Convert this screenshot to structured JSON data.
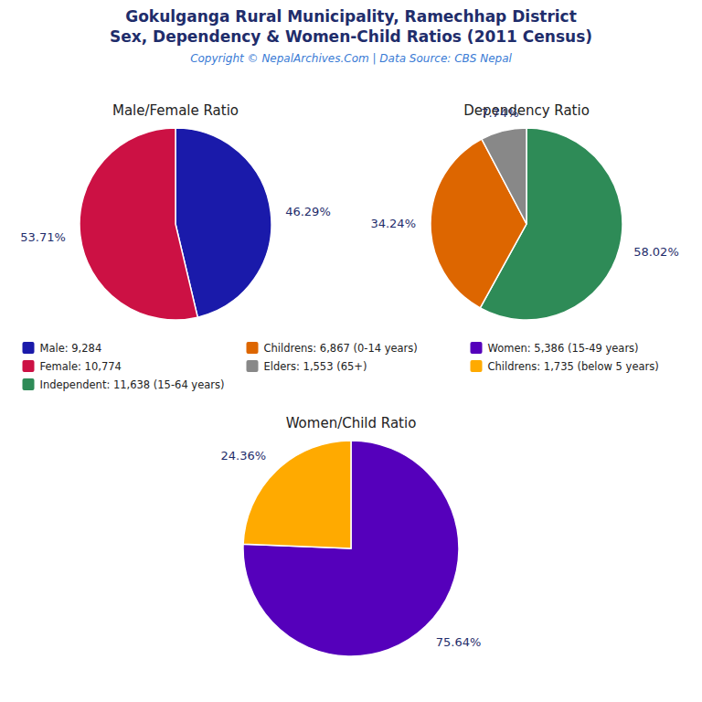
{
  "title": "Gokulganga Rural Municipality, Ramechhap District",
  "subtitle": "Sex, Dependency & Women-Child Ratios (2011 Census)",
  "annotations": [
    "Copyright © NepalArchives.Com | Data Source: CBS Nepal"
  ],
  "chart_data": [
    {
      "type": "pie",
      "title": "Male/Female Ratio",
      "categories": [
        "Male: 9,284",
        "Female: 10,774"
      ],
      "values": [
        46.29,
        53.71
      ],
      "value_labels": [
        "46.29%",
        "53.71%"
      ],
      "colors": [
        "#1a1aaa",
        "#cc1144"
      ],
      "data_labels": true,
      "legend": "center"
    },
    {
      "type": "pie",
      "title": "Dependency Ratio",
      "categories": [
        "Independent: 11,638 (15-64 years)",
        "Childrens: 6,867 (0-14 years)",
        "Elders: 1,553 (65+)"
      ],
      "values": [
        58.02,
        34.24,
        7.74
      ],
      "value_labels": [
        "58.02%",
        "34.24%",
        "7.74%"
      ],
      "colors": [
        "#2e8b57",
        "#dd6600",
        "#888888"
      ],
      "data_labels": true,
      "legend": "center"
    },
    {
      "type": "pie",
      "title": "Women/Child Ratio",
      "categories": [
        "Women: 5,386 (15-49 years)",
        "Childrens: 1,735 (below 5 years)"
      ],
      "values": [
        75.64,
        24.36
      ],
      "value_labels": [
        "75.64%",
        "24.36%"
      ],
      "colors": [
        "#5500bb",
        "#ffaa00"
      ],
      "data_labels": true,
      "legend": "center"
    }
  ]
}
